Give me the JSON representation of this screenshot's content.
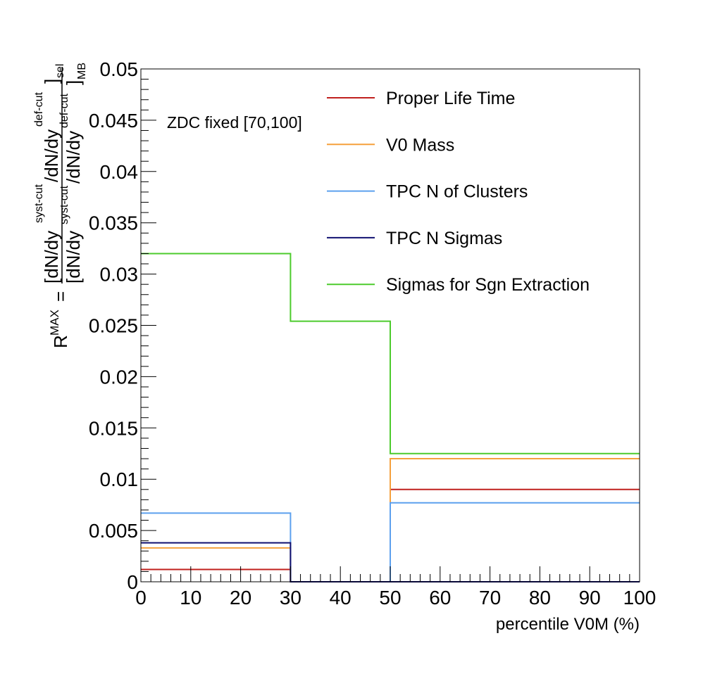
{
  "chart_data": {
    "type": "line",
    "style": "step-histogram",
    "xlabel": "percentile V0M (%)",
    "ylabel": {
      "lhs": "R",
      "lhs_sup": "MAX",
      "equals": "=",
      "num_open": "[dN/dy",
      "num_sup1": "syst-cut",
      "num_mid": "/dN/dy",
      "num_sup2": "def-cut",
      "num_close": "]",
      "num_sub": "sel",
      "den_open": "[dN/dy",
      "den_sup1": "syst-cut",
      "den_mid": "/dN/dy",
      "den_sup2": "def-cut",
      "den_close": "]",
      "den_sub": "MB"
    },
    "annotation": "ZDC fixed [70,100]",
    "xlim": [
      0,
      100
    ],
    "ylim": [
      0,
      0.05
    ],
    "x_ticks": [
      0,
      10,
      20,
      30,
      40,
      50,
      60,
      70,
      80,
      90,
      100
    ],
    "y_ticks": [
      0,
      0.005,
      0.01,
      0.015,
      0.02,
      0.025,
      0.03,
      0.035,
      0.04,
      0.045,
      0.05
    ],
    "x_tick_labels": [
      "0",
      "10",
      "20",
      "30",
      "40",
      "50",
      "60",
      "70",
      "80",
      "90",
      "100"
    ],
    "y_tick_labels": [
      "0",
      "0.005",
      "0.01",
      "0.015",
      "0.02",
      "0.025",
      "0.03",
      "0.035",
      "0.04",
      "0.045",
      "0.05"
    ],
    "bin_edges": [
      0,
      30,
      50,
      100
    ],
    "legend_position": "top-right",
    "grid": false,
    "series": [
      {
        "name": "Proper Life Time",
        "color": "#c0201e",
        "values": [
          0.0012,
          0.0,
          0.009
        ]
      },
      {
        "name": "V0 Mass",
        "color": "#f5a03c",
        "values": [
          0.0033,
          0.0,
          0.012
        ]
      },
      {
        "name": "TPC N of Clusters",
        "color": "#5ca0ee",
        "values": [
          0.0067,
          0.0,
          0.0077
        ]
      },
      {
        "name": "TPC N Sigmas",
        "color": "#101070",
        "values": [
          0.0038,
          0.0,
          0.0
        ]
      },
      {
        "name": "Sigmas for Sgn Extraction",
        "color": "#4ccb2c",
        "values": [
          0.032,
          0.0254,
          0.0125
        ]
      }
    ]
  }
}
